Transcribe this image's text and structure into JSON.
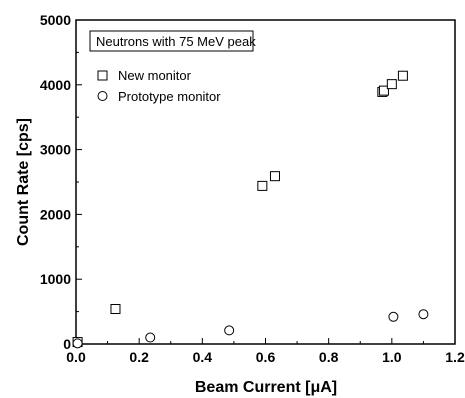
{
  "chart_data": {
    "type": "scatter",
    "annotation": "Neutrons with 75 MeV peak",
    "xlabel": "Beam Current [μA]",
    "ylabel": "Count Rate [cps]",
    "xlim": [
      0.0,
      1.2
    ],
    "ylim": [
      0,
      5000
    ],
    "x_ticks": [
      "0.0",
      "0.2",
      "0.4",
      "0.6",
      "0.8",
      "1.0",
      "1.2"
    ],
    "y_ticks": [
      "0",
      "1000",
      "2000",
      "3000",
      "4000",
      "5000"
    ],
    "grid": false,
    "legend_position": "top-left",
    "series": [
      {
        "name": "New monitor",
        "marker": "square",
        "points": [
          {
            "x": 0.005,
            "y": 30
          },
          {
            "x": 0.125,
            "y": 540
          },
          {
            "x": 0.59,
            "y": 2440
          },
          {
            "x": 0.63,
            "y": 2590
          },
          {
            "x": 0.97,
            "y": 3890
          },
          {
            "x": 0.975,
            "y": 3910
          },
          {
            "x": 1.0,
            "y": 4010
          },
          {
            "x": 1.035,
            "y": 4140
          }
        ]
      },
      {
        "name": "Prototype monitor",
        "marker": "circle",
        "points": [
          {
            "x": 0.005,
            "y": 10
          },
          {
            "x": 0.235,
            "y": 100
          },
          {
            "x": 0.485,
            "y": 210
          },
          {
            "x": 1.005,
            "y": 420
          },
          {
            "x": 1.1,
            "y": 460
          }
        ]
      }
    ]
  },
  "colors": {
    "foreground": "#000000",
    "background": "#ffffff"
  }
}
